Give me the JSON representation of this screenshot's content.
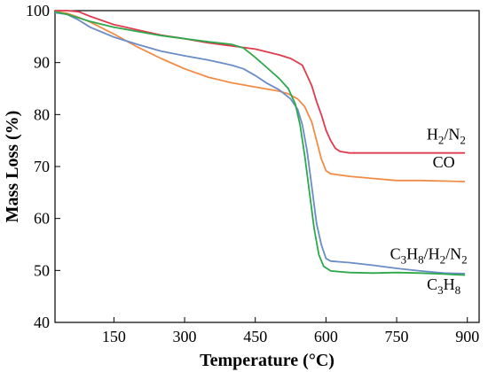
{
  "chart_data": {
    "type": "line",
    "title": "",
    "xlabel": "Temperature (°C)",
    "ylabel": "Mass Loss (%)",
    "xlim": [
      25,
      925
    ],
    "ylim": [
      40,
      100
    ],
    "xticks": [
      150,
      300,
      450,
      600,
      750,
      900
    ],
    "yticks": [
      40,
      50,
      60,
      70,
      80,
      90,
      100
    ],
    "grid": false,
    "series": [
      {
        "color": "#e03a4e",
        "points": [
          [
            25,
            100
          ],
          [
            50,
            100
          ],
          [
            75,
            99.8
          ],
          [
            100,
            98.9
          ],
          [
            150,
            97.3
          ],
          [
            200,
            96.3
          ],
          [
            250,
            95.3
          ],
          [
            300,
            94.6
          ],
          [
            350,
            93.8
          ],
          [
            400,
            93.2
          ],
          [
            450,
            92.6
          ],
          [
            500,
            91.5
          ],
          [
            525,
            90.8
          ],
          [
            550,
            89.5
          ],
          [
            560,
            87.5
          ],
          [
            570,
            85.5
          ],
          [
            580,
            82.5
          ],
          [
            590,
            80
          ],
          [
            600,
            77
          ],
          [
            610,
            75
          ],
          [
            620,
            73.5
          ],
          [
            630,
            72.9
          ],
          [
            650,
            72.6
          ],
          [
            700,
            72.6
          ],
          [
            800,
            72.6
          ],
          [
            895,
            72.6
          ]
        ]
      },
      {
        "color": "#f28c45",
        "points": [
          [
            25,
            99.8
          ],
          [
            50,
            99.5
          ],
          [
            75,
            98.7
          ],
          [
            100,
            97.8
          ],
          [
            150,
            95.5
          ],
          [
            200,
            93
          ],
          [
            250,
            90.8
          ],
          [
            300,
            88.8
          ],
          [
            350,
            87.2
          ],
          [
            400,
            86.1
          ],
          [
            450,
            85.3
          ],
          [
            500,
            84.5
          ],
          [
            520,
            84
          ],
          [
            540,
            83
          ],
          [
            555,
            81.5
          ],
          [
            570,
            78.5
          ],
          [
            580,
            75
          ],
          [
            590,
            71.5
          ],
          [
            600,
            69.2
          ],
          [
            610,
            68.6
          ],
          [
            650,
            68.1
          ],
          [
            700,
            67.7
          ],
          [
            750,
            67.3
          ],
          [
            800,
            67.3
          ],
          [
            895,
            67.1
          ]
        ]
      },
      {
        "color": "#6a8cc7",
        "points": [
          [
            25,
            99.6
          ],
          [
            50,
            99.3
          ],
          [
            75,
            98.2
          ],
          [
            100,
            96.8
          ],
          [
            150,
            94.9
          ],
          [
            200,
            93.5
          ],
          [
            250,
            92.2
          ],
          [
            300,
            91.3
          ],
          [
            350,
            90.5
          ],
          [
            400,
            89.5
          ],
          [
            425,
            88.8
          ],
          [
            450,
            87.5
          ],
          [
            475,
            86
          ],
          [
            500,
            84.8
          ],
          [
            525,
            83
          ],
          [
            540,
            81
          ],
          [
            550,
            78
          ],
          [
            560,
            73
          ],
          [
            570,
            66
          ],
          [
            580,
            59
          ],
          [
            590,
            55
          ],
          [
            600,
            52.3
          ],
          [
            610,
            51.8
          ],
          [
            650,
            51.5
          ],
          [
            700,
            51
          ],
          [
            750,
            50.4
          ],
          [
            800,
            49.9
          ],
          [
            850,
            49.5
          ],
          [
            895,
            49.4
          ]
        ]
      },
      {
        "color": "#2da84c",
        "points": [
          [
            25,
            99.8
          ],
          [
            50,
            99.3
          ],
          [
            75,
            98.6
          ],
          [
            100,
            97.9
          ],
          [
            150,
            96.8
          ],
          [
            200,
            96
          ],
          [
            250,
            95.2
          ],
          [
            300,
            94.6
          ],
          [
            350,
            94
          ],
          [
            400,
            93.5
          ],
          [
            425,
            92.8
          ],
          [
            450,
            91
          ],
          [
            475,
            89
          ],
          [
            500,
            87
          ],
          [
            520,
            85
          ],
          [
            535,
            82
          ],
          [
            545,
            78
          ],
          [
            555,
            72
          ],
          [
            565,
            65
          ],
          [
            575,
            58
          ],
          [
            585,
            53
          ],
          [
            595,
            50.8
          ],
          [
            610,
            49.9
          ],
          [
            650,
            49.6
          ],
          [
            700,
            49.5
          ],
          [
            750,
            49.6
          ],
          [
            800,
            49.5
          ],
          [
            850,
            49.3
          ],
          [
            895,
            49.1
          ]
        ]
      }
    ],
    "annotations": [
      {
        "base": "H",
        "sub": "2",
        "rest": "/N",
        "sub2": "2",
        "x": 855,
        "y": 75.2
      },
      {
        "base": "CO",
        "x": 850,
        "y": 69.8
      },
      {
        "base": "C",
        "sub": "3",
        "rest": "H",
        "sub2": "8",
        "rest2": "/H",
        "sub3": "2",
        "rest3": "/N",
        "sub4": "2",
        "x": 818,
        "y": 52.2
      },
      {
        "base": "C",
        "sub": "3",
        "rest": "H",
        "sub2": "8",
        "x": 850,
        "y": 46.3
      }
    ]
  }
}
